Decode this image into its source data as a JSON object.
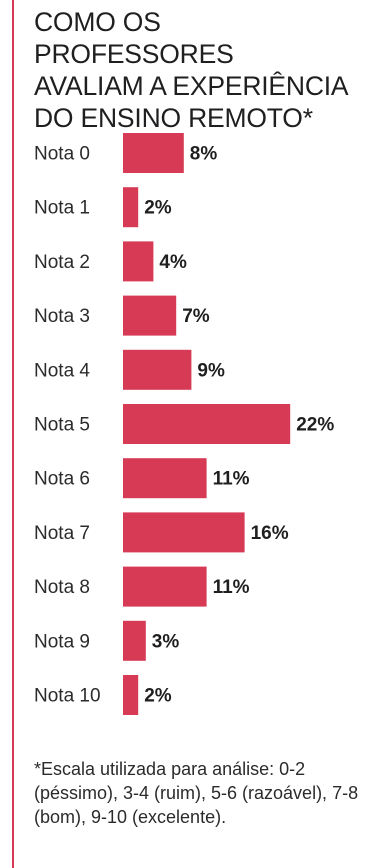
{
  "title": "COMO OS PROFESSORES\nAVALIAM A EXPERIÊNCIA\nDO ENSINO REMOTO*",
  "footnote": "*Escala utilizada para análise: 0-2 (péssimo), 3-4 (ruim), 5-6 (razoável), 7-8 (bom), 9-10 (excelente).",
  "colors": {
    "bar": "#d63a55",
    "accent_rule": "#d63a55",
    "text": "#1f1f1f"
  },
  "chart_data": {
    "type": "bar",
    "orientation": "horizontal",
    "title": "COMO OS PROFESSORES AVALIAM A EXPERIÊNCIA DO ENSINO REMOTO*",
    "categories": [
      "Nota 0",
      "Nota 1",
      "Nota 2",
      "Nota 3",
      "Nota 4",
      "Nota 5",
      "Nota 6",
      "Nota 7",
      "Nota 8",
      "Nota 9",
      "Nota 10"
    ],
    "values": [
      8,
      2,
      4,
      7,
      9,
      22,
      11,
      16,
      11,
      3,
      2
    ],
    "value_labels": [
      "8%",
      "2%",
      "4%",
      "7%",
      "9%",
      "22%",
      "11%",
      "16%",
      "11%",
      "3%",
      "2%"
    ],
    "unit": "%",
    "grid": false,
    "legend": "none"
  }
}
